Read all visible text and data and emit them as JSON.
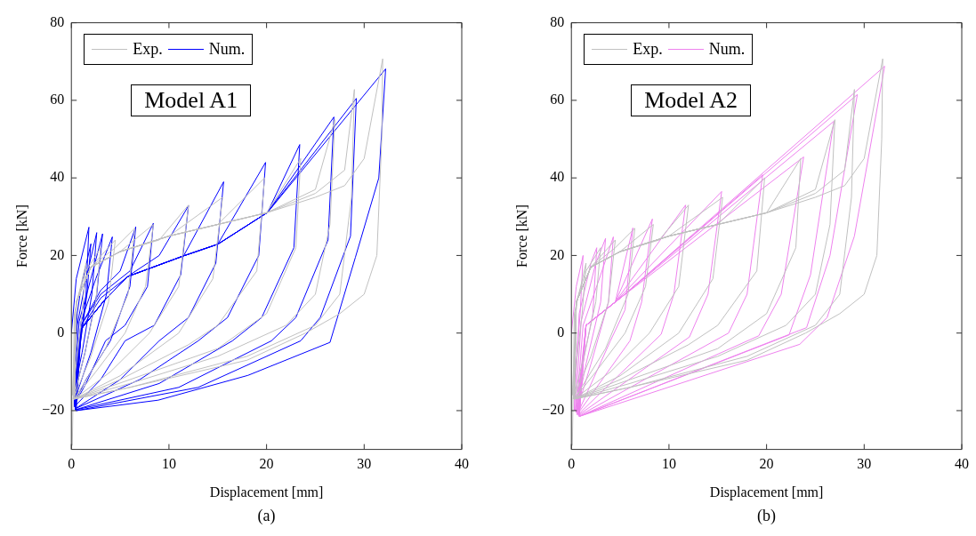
{
  "chart_data": [
    {
      "type": "line",
      "xlabel": "Displacement [mm]",
      "ylabel": "Force [kN]",
      "xlim": [
        0,
        40
      ],
      "ylim": [
        -30,
        80
      ],
      "xticks": [
        0,
        10,
        20,
        30,
        40
      ],
      "yticks": [
        {
          "value": -20,
          "label": "−20"
        },
        0,
        20,
        40,
        60,
        80
      ],
      "legend": "top left",
      "marker": "none",
      "line_style": "solid",
      "annotations": [
        "Model A1",
        "(a)"
      ],
      "series": [
        {
          "name": "Exp.",
          "color": "#c0c0c0",
          "x": [
            0.1,
            0.3,
            1.5,
            1.1,
            0.5,
            0.1,
            0.5,
            1.5,
            3.0,
            2.5,
            1.3,
            0.2,
            0.5,
            2,
            4.5,
            3.8,
            2,
            0.2,
            0.5,
            2,
            4.5,
            6.5,
            5.8,
            3.5,
            0.3,
            0.5,
            2,
            5,
            8.4,
            7.6,
            5.5,
            2.5,
            0.3,
            0.5,
            2,
            5,
            9,
            12,
            11,
            8,
            4,
            0.3,
            0.5,
            2,
            5,
            10,
            15.5,
            14.5,
            11,
            5,
            0.3,
            0.5,
            2,
            5,
            10,
            15,
            19.8,
            19,
            15,
            12,
            5,
            0.3,
            0.5,
            2,
            5,
            10,
            15,
            20,
            23.5,
            23,
            20,
            15,
            6,
            0.3,
            0.5,
            2,
            5,
            10,
            15,
            20,
            25,
            27,
            26.5,
            25,
            22,
            15,
            6,
            0.3,
            0.5,
            2,
            5,
            10,
            15,
            20,
            25,
            28,
            29,
            28.7,
            27.5,
            25,
            18,
            6,
            0.3,
            0.5,
            2,
            5,
            10,
            15,
            20,
            25,
            28,
            30,
            31.9,
            31.8,
            31.3,
            30,
            27.5,
            24,
            18,
            6,
            0.3
          ],
          "values": [
            -29,
            5,
            18,
            5,
            -8,
            -16,
            8,
            16,
            22,
            8,
            -6,
            -17,
            8,
            17,
            24,
            8,
            -6,
            -17,
            8,
            17,
            22,
            27,
            10,
            -4,
            -17,
            8,
            17,
            21,
            28,
            12,
            0,
            -10,
            -17,
            8,
            17,
            21,
            24,
            33,
            12,
            0,
            -10,
            -17,
            8,
            17,
            21,
            25,
            35,
            14,
            0,
            -11,
            -17,
            8,
            17,
            21,
            25,
            28,
            40,
            16,
            2,
            -3,
            -12,
            -17,
            8,
            17,
            21,
            25,
            28,
            31,
            45,
            22,
            5,
            -4,
            -12,
            -17,
            8,
            17,
            21,
            25,
            28,
            31,
            37,
            55,
            28,
            10,
            2,
            -6,
            -13,
            -17,
            8,
            17,
            21,
            25,
            28,
            31,
            36,
            42,
            62.8,
            35,
            10,
            2,
            -6,
            -14,
            -17,
            8,
            17,
            21,
            25,
            28,
            31,
            35,
            38,
            45,
            70.7,
            50,
            20,
            10,
            5,
            0,
            -7,
            -14,
            -17
          ]
        },
        {
          "name": "Num.",
          "color": "#0000ff",
          "x": [
            0,
            0.5,
            1.8,
            1.5,
            0.8,
            0.2,
            0.6,
            1.0,
            2.0,
            1.6,
            0.8,
            0.2,
            0.6,
            1.5,
            2.6,
            2.1,
            1.1,
            0.2,
            0.8,
            2.0,
            3.2,
            2.6,
            1.4,
            0.2,
            1.0,
            2.5,
            4.2,
            3.6,
            2.0,
            0.3,
            1.0,
            3.0,
            5.0,
            6.6,
            6.0,
            4.0,
            1.5,
            0.3,
            1,
            3,
            6,
            8.4,
            7.8,
            5.5,
            3.5,
            1.5,
            0.3,
            1,
            3,
            6,
            9,
            12,
            11.2,
            8.5,
            5.5,
            3,
            0.3,
            1,
            3.4,
            5.8,
            11.5,
            15.6,
            14.8,
            12,
            9,
            5,
            0.4,
            1,
            3.4,
            5.8,
            11.5,
            15,
            19.9,
            19.2,
            16,
            13,
            7,
            0.4,
            1,
            3.4,
            5.8,
            11.5,
            15,
            20.1,
            23.4,
            22.8,
            19.5,
            16.5,
            9,
            0.4,
            1,
            3.4,
            5.8,
            11.5,
            15,
            20.1,
            26.9,
            26.3,
            23,
            20.5,
            11,
            0.4,
            1,
            3.4,
            5.8,
            11.5,
            15,
            20.1,
            29.2,
            28.6,
            25.5,
            23.5,
            13,
            0.5,
            1,
            3.4,
            5.8,
            11.5,
            15,
            20.1,
            32.2,
            31.5,
            29.1,
            26.5,
            18.1,
            8.9,
            0.5
          ],
          "values": [
            0,
            14,
            27.3,
            10,
            -5,
            -14,
            5,
            12,
            23,
            10,
            -5,
            -15,
            2,
            14,
            25.9,
            10,
            -5,
            -16,
            3,
            14,
            25.6,
            10,
            -5,
            -17,
            3,
            14,
            24.8,
            10,
            -5,
            -17.5,
            2,
            11,
            16,
            27.4,
            12,
            -2,
            -12,
            -18,
            2,
            10,
            16,
            28.3,
            12,
            2,
            -2,
            -13,
            -18.5,
            1,
            9,
            15,
            20,
            32.8,
            15,
            2,
            -2,
            -12,
            -19,
            1,
            8.5,
            14.6,
            19.9,
            39,
            18,
            4,
            -2,
            -12,
            -19.5,
            1,
            8.5,
            14.6,
            19.9,
            22.9,
            44,
            20,
            4,
            -2,
            -12,
            -19.5,
            1,
            8.5,
            14.6,
            19.9,
            22.9,
            31.1,
            48.6,
            22,
            4,
            -2,
            -13,
            -19.8,
            1,
            8.5,
            14.6,
            19.9,
            22.9,
            31.1,
            55.7,
            24,
            4,
            -2,
            -14,
            -19.8,
            1,
            8.5,
            14.6,
            19.9,
            22.9,
            31.1,
            60.5,
            25,
            4,
            -2,
            -14,
            -20,
            1,
            8.5,
            14.6,
            19.9,
            22.9,
            31.1,
            68.1,
            40,
            19.5,
            -2.4,
            -10.9,
            -17.3,
            -20
          ]
        }
      ]
    },
    {
      "type": "line",
      "xlabel": "Displacement [mm]",
      "ylabel": "Force [kN]",
      "xlim": [
        0,
        40
      ],
      "ylim": [
        -30,
        80
      ],
      "xticks": [
        0,
        10,
        20,
        30,
        40
      ],
      "yticks": [
        {
          "value": -20,
          "label": "−20"
        },
        0,
        20,
        40,
        60,
        80
      ],
      "legend": "top left",
      "marker": "none",
      "line_style": "solid",
      "annotations": [
        "Model A2",
        "(b)"
      ],
      "series": [
        {
          "name": "Exp.",
          "color": "#c0c0c0",
          "x": [
            0.1,
            0.3,
            1.5,
            1.1,
            0.5,
            0.1,
            0.5,
            1.5,
            3.0,
            2.5,
            1.3,
            0.2,
            0.5,
            2,
            4.5,
            3.8,
            2,
            0.2,
            0.5,
            2,
            4.5,
            6.5,
            5.8,
            3.5,
            0.3,
            0.5,
            2,
            5,
            8.4,
            7.6,
            5.5,
            2.5,
            0.3,
            0.5,
            2,
            5,
            9,
            12,
            11,
            8,
            4,
            0.3,
            0.5,
            2,
            5,
            10,
            15.5,
            14.5,
            11,
            5,
            0.3,
            0.5,
            2,
            5,
            10,
            15,
            19.8,
            19,
            15,
            12,
            5,
            0.3,
            0.5,
            2,
            5,
            10,
            15,
            20,
            23.5,
            23,
            20,
            15,
            6,
            0.3,
            0.5,
            2,
            5,
            10,
            15,
            20,
            25,
            27,
            26.5,
            25,
            22,
            15,
            6,
            0.3,
            0.5,
            2,
            5,
            10,
            15,
            20,
            25,
            28,
            29,
            28.7,
            27.5,
            25,
            18,
            6,
            0.3,
            0.5,
            2,
            5,
            10,
            15,
            20,
            25,
            28,
            30,
            31.9,
            31.8,
            31.3,
            30,
            27.5,
            24,
            18,
            6,
            0.3
          ],
          "values": [
            -29,
            5,
            18,
            5,
            -8,
            -16,
            8,
            16,
            22,
            8,
            -6,
            -17,
            8,
            17,
            24,
            8,
            -6,
            -17,
            8,
            17,
            22,
            27,
            10,
            -4,
            -17,
            8,
            17,
            21,
            28,
            12,
            0,
            -10,
            -17,
            8,
            17,
            21,
            24,
            33,
            12,
            0,
            -10,
            -17,
            8,
            17,
            21,
            25,
            35,
            14,
            0,
            -11,
            -17,
            8,
            17,
            21,
            25,
            28,
            40,
            16,
            2,
            -3,
            -12,
            -17,
            8,
            17,
            21,
            25,
            28,
            31,
            45,
            22,
            5,
            -4,
            -12,
            -17,
            8,
            17,
            21,
            25,
            28,
            31,
            37,
            55,
            28,
            10,
            2,
            -6,
            -13,
            -17,
            8,
            17,
            21,
            25,
            28,
            31,
            36,
            42,
            62.8,
            35,
            10,
            2,
            -6,
            -14,
            -17,
            8,
            17,
            21,
            25,
            28,
            31,
            35,
            38,
            45,
            70.7,
            50,
            20,
            10,
            5,
            0,
            -7,
            -14,
            -17
          ]
        },
        {
          "name": "Num.",
          "color": "#ee82ee",
          "x": [
            0,
            0.5,
            1.2,
            0.9,
            0.4,
            0.3,
            0.8,
            2.0,
            2.6,
            2.2,
            1,
            0.4,
            1.0,
            2.5,
            3.5,
            3.0,
            1.5,
            0.5,
            1.2,
            3,
            4.3,
            3.8,
            2,
            0.5,
            1.5,
            4.5,
            6.3,
            5.5,
            4,
            0.6,
            1.5,
            4.5,
            8.3,
            7.2,
            6,
            0.6,
            1.5,
            4.5,
            11.7,
            10.5,
            9.2,
            0.7,
            1.5,
            4.5,
            15.4,
            14,
            12.1,
            0.7,
            1.5,
            5,
            19.6,
            18,
            16.1,
            0.8,
            1.5,
            5,
            23.8,
            21.5,
            19.2,
            0.8,
            1.5,
            5,
            26.9,
            24.5,
            22.3,
            0.8,
            1.5,
            5,
            29.3,
            26.5,
            24.1,
            0.8,
            1.5,
            5,
            32.1,
            29,
            26.2,
            23.4,
            0.8
          ],
          "values": [
            0,
            12,
            20,
            5,
            -10,
            -20,
            5,
            18,
            22,
            5,
            -10,
            -20,
            3,
            18,
            24.4,
            8,
            -8,
            -20.5,
            2,
            15,
            24.8,
            8,
            -8,
            -20.5,
            2,
            8,
            27.1,
            6,
            -2,
            -21,
            2,
            8,
            29.4,
            8,
            -2,
            -21,
            2,
            8,
            33,
            10,
            -0.3,
            -21,
            2,
            8,
            36.5,
            10,
            -1,
            -21.2,
            2,
            9,
            40.8,
            10,
            0,
            -21.3,
            2,
            9,
            45.4,
            10,
            -0.7,
            -21.5,
            2,
            9,
            54.6,
            15,
            -0.5,
            -21.5,
            2,
            9,
            61.5,
            20,
            1.4,
            -21.5,
            2,
            9,
            68.8,
            25,
            4,
            -2.9,
            -21.5
          ]
        }
      ]
    }
  ]
}
